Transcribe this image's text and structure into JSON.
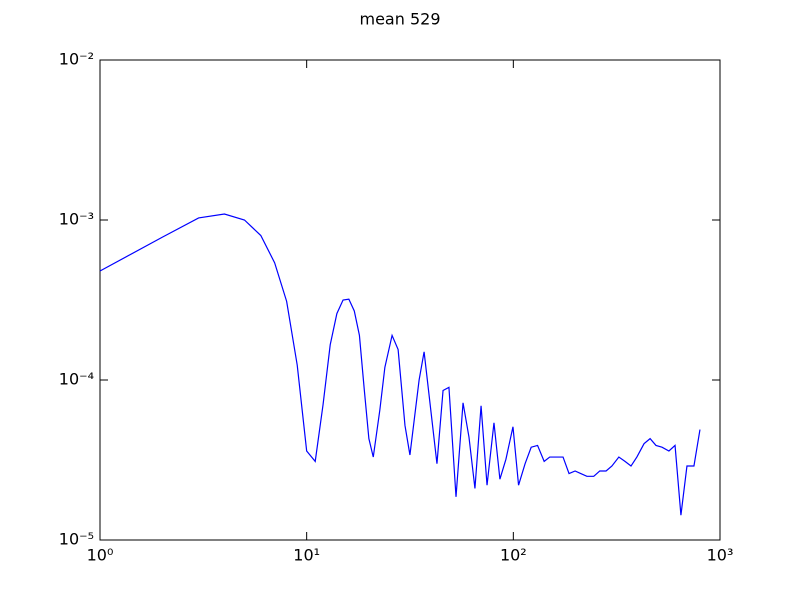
{
  "chart_data": {
    "type": "line",
    "title": "mean 529",
    "log_x": true,
    "log_y": true,
    "grid": false,
    "x": [
      1,
      2,
      3,
      4,
      5,
      6,
      7,
      8,
      9,
      10,
      11,
      12,
      13,
      14,
      15,
      16,
      17,
      18,
      19,
      20,
      21,
      22.6,
      23.9,
      25.9,
      27.7,
      29.9,
      31.6,
      35,
      37,
      42.7,
      45.7,
      48.8,
      52.8,
      57.1,
      61,
      65.2,
      69.8,
      74.6,
      80.6,
      86.1,
      92.1,
      99.6,
      106,
      114,
      122,
      131,
      141,
      150,
      161,
      174,
      186,
      199,
      212,
      227,
      245,
      262,
      281,
      300,
      324,
      347,
      371,
      396,
      429,
      459,
      490,
      524,
      566,
      606,
      647,
      692,
      748,
      800
    ],
    "series": [
      {
        "name": "mean",
        "color": "#0000ff",
        "values": [
          0.00048,
          0.00078,
          0.00103,
          0.00109,
          0.001,
          0.0008,
          0.00054,
          0.00031,
          0.000124,
          3.6e-05,
          3.1e-05,
          7e-05,
          0.000166,
          0.00026,
          0.000316,
          0.00032,
          0.00027,
          0.00019,
          8.7e-05,
          4.3e-05,
          3.3e-05,
          6.5e-05,
          0.00012,
          0.00019,
          0.000155,
          5.2e-05,
          3.4e-05,
          0.0001,
          0.00015,
          3e-05,
          8.6e-05,
          9e-05,
          1.86e-05,
          7.2e-05,
          4.4e-05,
          2.1e-05,
          6.9e-05,
          2.2e-05,
          5.4e-05,
          2.4e-05,
          3.2e-05,
          5.1e-05,
          2.2e-05,
          3e-05,
          3.8e-05,
          3.9e-05,
          3.1e-05,
          3.3e-05,
          3.3e-05,
          3.3e-05,
          2.6e-05,
          2.7e-05,
          2.6e-05,
          2.5e-05,
          2.5e-05,
          2.7e-05,
          2.7e-05,
          2.9e-05,
          3.3e-05,
          3.1e-05,
          2.9e-05,
          3.3e-05,
          4e-05,
          4.3e-05,
          3.9e-05,
          3.8e-05,
          3.6e-05,
          3.9e-05,
          1.43e-05,
          2.9e-05,
          2.9e-05,
          4.9e-05
        ]
      }
    ],
    "xlim": [
      1,
      1000
    ],
    "ylim": [
      1e-05,
      0.01
    ],
    "xticks": [
      {
        "value": 1,
        "label": "10⁰"
      },
      {
        "value": 10,
        "label": "10¹"
      },
      {
        "value": 100,
        "label": "10²"
      },
      {
        "value": 1000,
        "label": "10³"
      }
    ],
    "yticks": [
      {
        "value": 1e-05,
        "label": "10⁻⁵"
      },
      {
        "value": 0.0001,
        "label": "10⁻⁴"
      },
      {
        "value": 0.001,
        "label": "10⁻³"
      },
      {
        "value": 0.01,
        "label": "10⁻²"
      }
    ]
  }
}
